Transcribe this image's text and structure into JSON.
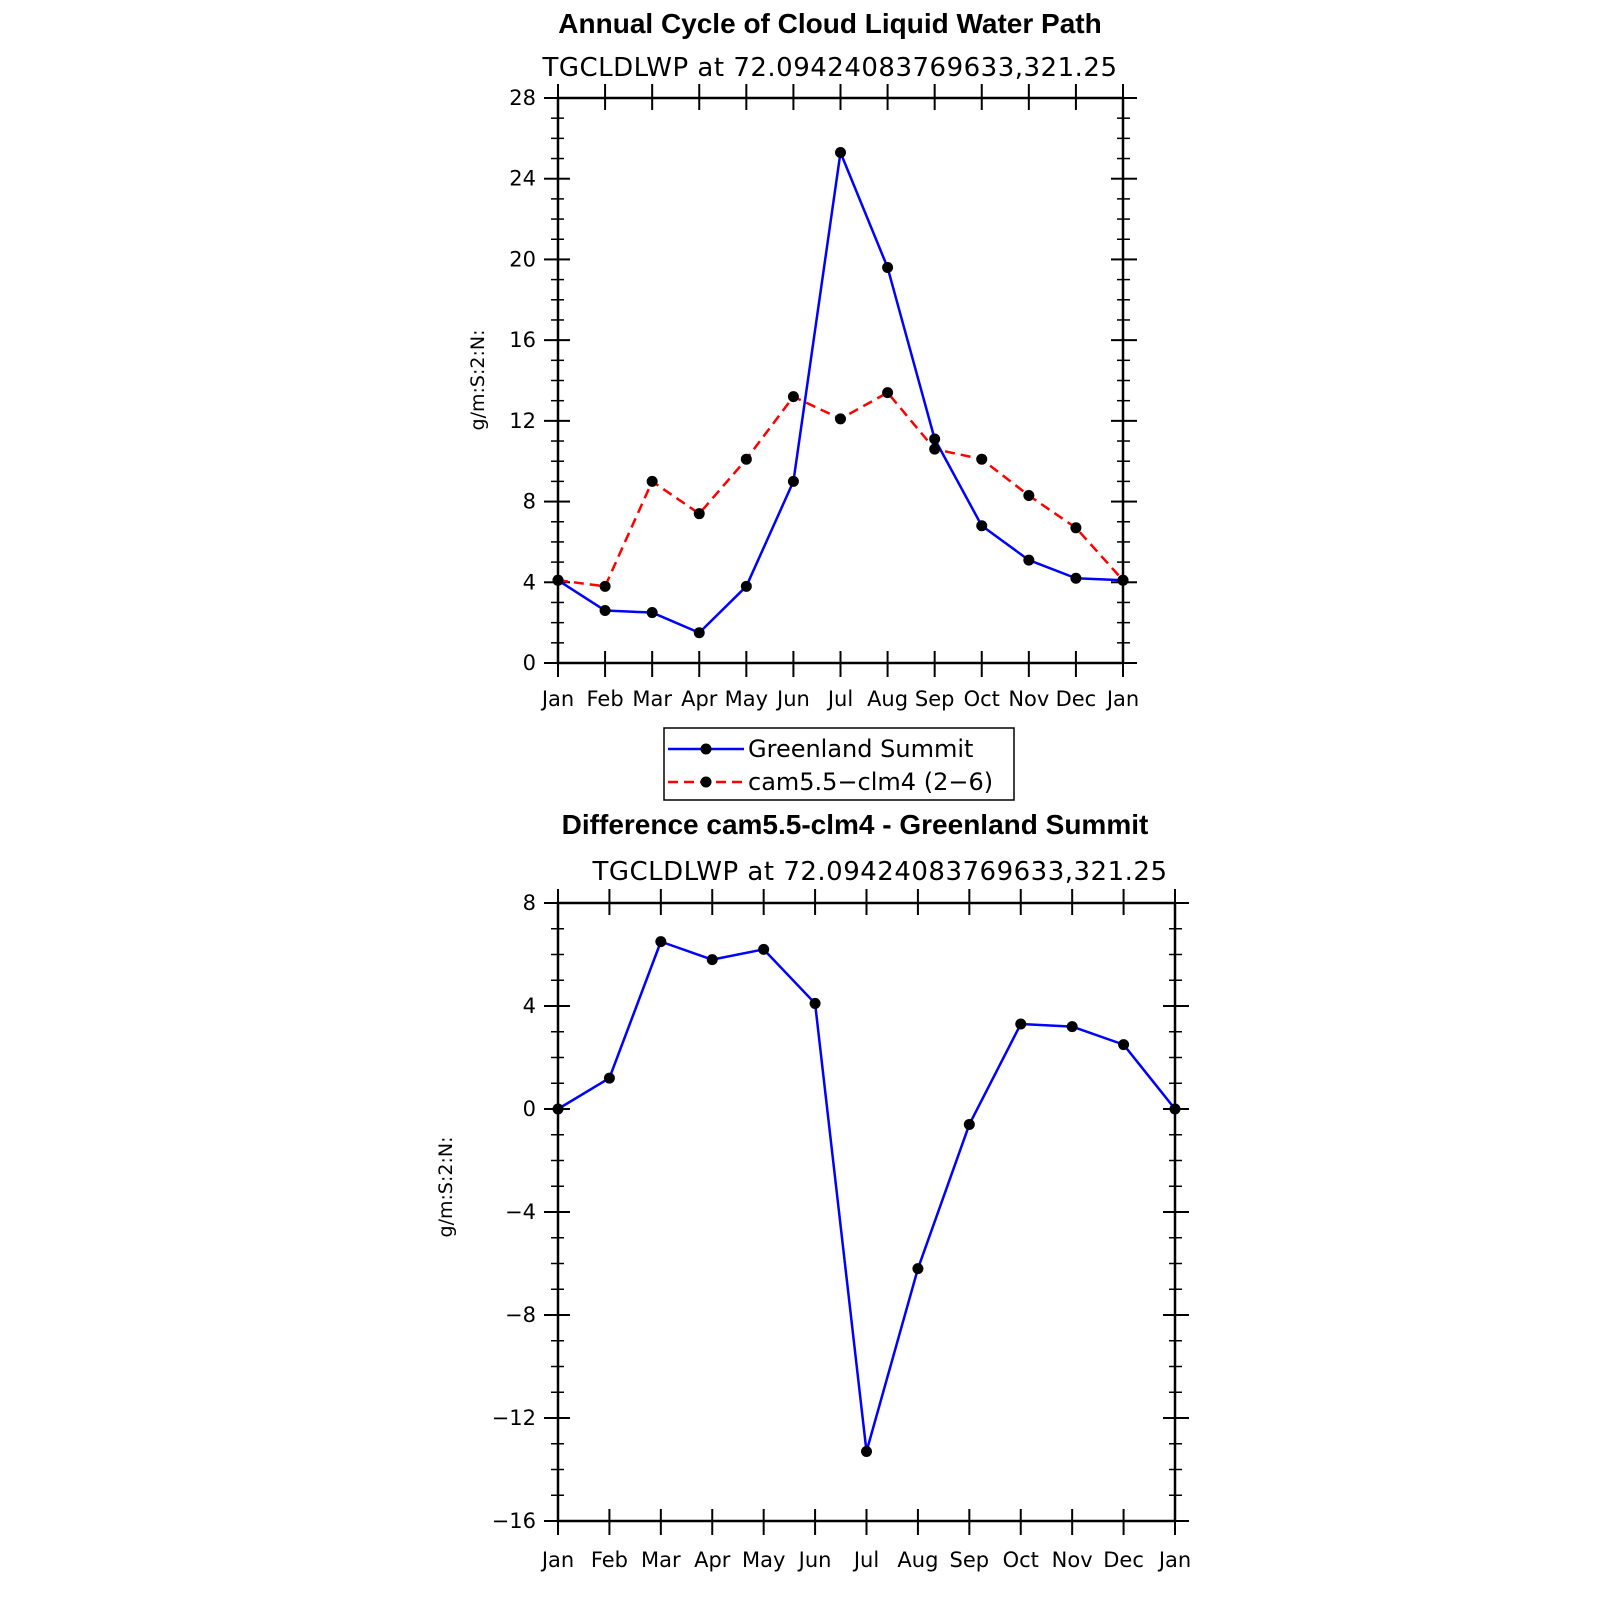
{
  "chart_data": [
    {
      "type": "line",
      "title": "Annual Cycle of Cloud Liquid Water Path",
      "subtitle": "TGCLDLWP  at  72.09424083769633,321.25",
      "ylabel": "g/m:S:2:N:",
      "xlabel": "",
      "categories": [
        "Jan",
        "Feb",
        "Mar",
        "Apr",
        "May",
        "Jun",
        "Jul",
        "Aug",
        "Sep",
        "Oct",
        "Nov",
        "Dec",
        "Jan"
      ],
      "ylim": [
        0,
        28
      ],
      "yticks": [
        "0",
        "4",
        "8",
        "12",
        "16",
        "20",
        "24",
        "28"
      ],
      "legend_position": "bottom-center",
      "series": [
        {
          "name": "Greenland Summit",
          "color": "#0000ff",
          "dash": "solid",
          "values": [
            4.1,
            2.6,
            2.5,
            1.5,
            3.8,
            9.0,
            25.3,
            19.6,
            11.1,
            6.8,
            5.1,
            4.2,
            4.1
          ]
        },
        {
          "name": "cam5.5−clm4 (2−6)",
          "color": "#ff0000",
          "dash": "dashed",
          "values": [
            4.1,
            3.8,
            9.0,
            7.4,
            10.1,
            13.2,
            12.1,
            13.4,
            10.6,
            10.1,
            8.3,
            6.7,
            4.1
          ]
        }
      ]
    },
    {
      "type": "line",
      "title": "Difference cam5.5-clm4 - Greenland Summit",
      "subtitle": "TGCLDLWP  at  72.09424083769633,321.25",
      "ylabel": "g/m:S:2:N:",
      "xlabel": "",
      "categories": [
        "Jan",
        "Feb",
        "Mar",
        "Apr",
        "May",
        "Jun",
        "Jul",
        "Aug",
        "Sep",
        "Oct",
        "Nov",
        "Dec",
        "Jan"
      ],
      "ylim": [
        -16,
        8
      ],
      "yticks": [
        "−16",
        "−12",
        "−8",
        "−4",
        "0",
        "4",
        "8"
      ],
      "series": [
        {
          "name": "",
          "color": "#0000ff",
          "dash": "solid",
          "values": [
            0.0,
            1.2,
            6.5,
            5.8,
            6.2,
            4.1,
            -13.3,
            -6.2,
            -0.6,
            3.3,
            3.2,
            2.5,
            0.0
          ]
        }
      ]
    }
  ]
}
